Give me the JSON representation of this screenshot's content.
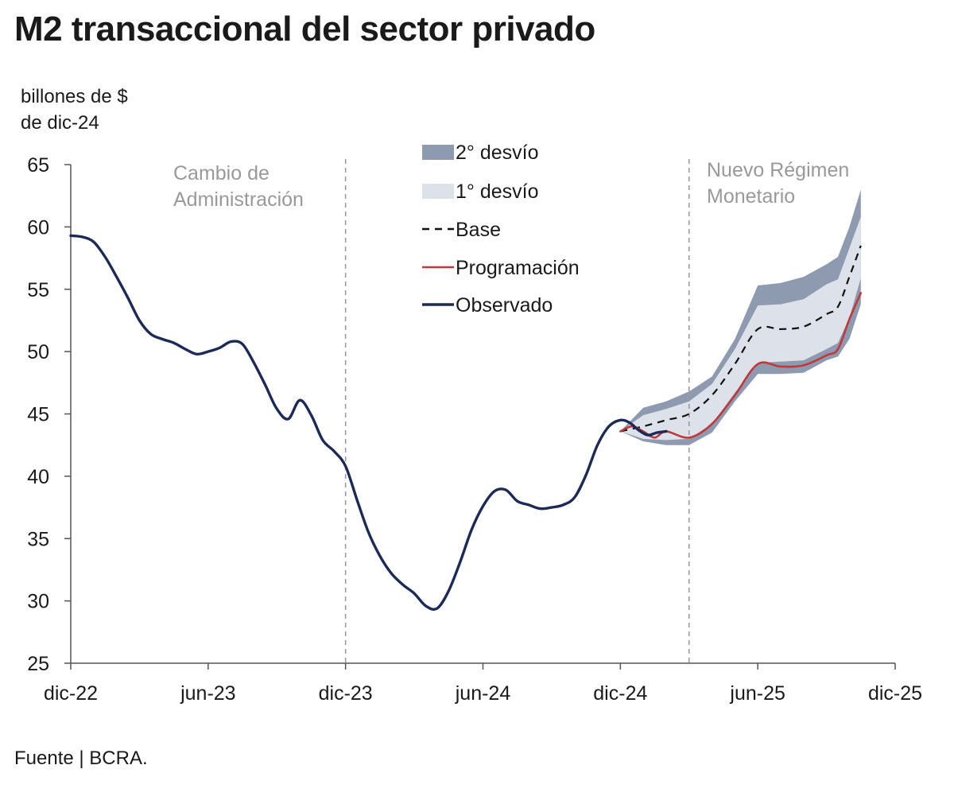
{
  "title": "M2 transaccional del sector privado",
  "unit_line1": "billones de $",
  "unit_line2": "de dic-24",
  "source": "Fuente | BCRA.",
  "colors": {
    "observed": "#1b2a57",
    "programming": "#c0393b",
    "base": "#111111",
    "band2": "#8e9ab0",
    "band1": "#dde1ea",
    "axis": "#555555",
    "annotation": "#999999"
  },
  "chart_data": {
    "type": "line",
    "xlabel": "",
    "ylabel": "billones de $ de dic-24",
    "x_ticks": [
      "dic-22",
      "jun-23",
      "dic-23",
      "jun-24",
      "dic-24",
      "jun-25",
      "dic-25"
    ],
    "x_unit": "months since dic-22",
    "ylim": [
      25,
      65
    ],
    "y_ticks": [
      25,
      30,
      35,
      40,
      45,
      50,
      55,
      60,
      65
    ],
    "grid": false,
    "legend": {
      "position": "top-center",
      "entries": [
        "2° desvío",
        "1° desvío",
        "Base",
        "Programación",
        "Observado"
      ]
    },
    "annotations": [
      {
        "lines": [
          "Cambio de",
          "Administración"
        ],
        "at_x": 12
      },
      {
        "lines": [
          "Nuevo Régimen",
          "Monetario"
        ],
        "at_x": 27
      }
    ],
    "series": [
      {
        "name": "Observado",
        "style": "solid-dark",
        "points": [
          [
            0,
            59.3
          ],
          [
            0.5,
            59.2
          ],
          [
            1,
            58.8
          ],
          [
            1.5,
            57.6
          ],
          [
            2,
            56
          ],
          [
            2.5,
            54.3
          ],
          [
            3,
            52.5
          ],
          [
            3.5,
            51.4
          ],
          [
            4,
            51
          ],
          [
            4.5,
            50.7
          ],
          [
            5,
            50.2
          ],
          [
            5.5,
            49.8
          ],
          [
            6,
            50
          ],
          [
            6.5,
            50.3
          ],
          [
            7,
            50.8
          ],
          [
            7.5,
            50.6
          ],
          [
            8,
            49.1
          ],
          [
            8.5,
            47.3
          ],
          [
            9,
            45.4
          ],
          [
            9.5,
            44.6
          ],
          [
            10,
            46.1
          ],
          [
            10.5,
            44.9
          ],
          [
            11,
            42.9
          ],
          [
            11.5,
            42
          ],
          [
            12,
            40.8
          ],
          [
            12.5,
            38.1
          ],
          [
            13,
            35.5
          ],
          [
            13.5,
            33.6
          ],
          [
            14,
            32.2
          ],
          [
            14.5,
            31.3
          ],
          [
            15,
            30.6
          ],
          [
            15.5,
            29.6
          ],
          [
            16,
            29.4
          ],
          [
            16.5,
            30.8
          ],
          [
            17,
            33.1
          ],
          [
            17.5,
            35.7
          ],
          [
            18,
            37.6
          ],
          [
            18.5,
            38.8
          ],
          [
            19,
            38.9
          ],
          [
            19.5,
            38
          ],
          [
            20,
            37.7
          ],
          [
            20.5,
            37.4
          ],
          [
            21,
            37.5
          ],
          [
            21.5,
            37.7
          ],
          [
            22,
            38.3
          ],
          [
            22.5,
            40.1
          ],
          [
            23,
            42.5
          ],
          [
            23.5,
            44
          ],
          [
            24,
            44.5
          ],
          [
            24.4,
            44.3
          ],
          [
            24.8,
            43.7
          ],
          [
            25.2,
            43.3
          ],
          [
            25.6,
            43.5
          ],
          [
            26,
            43.6
          ]
        ]
      },
      {
        "name": "Programación",
        "style": "solid-red",
        "points": [
          [
            24,
            43.6
          ],
          [
            24.5,
            44
          ],
          [
            25,
            43.6
          ],
          [
            25.5,
            43.1
          ],
          [
            26,
            43.6
          ],
          [
            27,
            43.1
          ],
          [
            28,
            44.2
          ],
          [
            29,
            46.5
          ],
          [
            30,
            49
          ],
          [
            31,
            48.8
          ],
          [
            32,
            48.9
          ],
          [
            33,
            49.7
          ],
          [
            33.5,
            50.2
          ],
          [
            34,
            52.6
          ],
          [
            34.5,
            54.7
          ]
        ]
      },
      {
        "name": "Base",
        "style": "dashed",
        "points": [
          [
            24,
            43.6
          ],
          [
            25,
            44
          ],
          [
            26,
            44.5
          ],
          [
            27,
            45
          ],
          [
            28,
            46.5
          ],
          [
            29,
            49
          ],
          [
            30,
            51.8
          ],
          [
            31,
            51.8
          ],
          [
            32,
            52
          ],
          [
            33,
            53
          ],
          [
            33.5,
            53.6
          ],
          [
            34,
            56
          ],
          [
            34.5,
            58.5
          ]
        ]
      }
    ],
    "bands": [
      {
        "name": "2° desvío",
        "x": [
          24,
          25,
          26,
          27,
          28,
          29,
          30,
          31,
          32,
          33,
          33.5,
          34,
          34.5
        ],
        "upper": [
          43.6,
          45.5,
          46,
          46.8,
          48,
          51,
          55.3,
          55.5,
          56,
          57,
          57.6,
          60,
          63
        ],
        "lower": [
          43.6,
          42.8,
          42.5,
          42.5,
          43.5,
          46,
          48.2,
          48.2,
          48.3,
          49.3,
          49.6,
          51,
          53.8
        ]
      },
      {
        "name": "1° desvío",
        "x": [
          24,
          25,
          26,
          27,
          28,
          29,
          30,
          31,
          32,
          33,
          33.5,
          34,
          34.5
        ],
        "upper": [
          43.6,
          44.9,
          45.4,
          46,
          47.4,
          50.2,
          53.7,
          53.8,
          54.2,
          55.4,
          55.8,
          58.3,
          60.8
        ],
        "lower": [
          43.6,
          43,
          42.9,
          43,
          44.2,
          46.7,
          49.1,
          49.2,
          49.3,
          50.2,
          50.7,
          52.7,
          55.9
        ]
      }
    ]
  }
}
